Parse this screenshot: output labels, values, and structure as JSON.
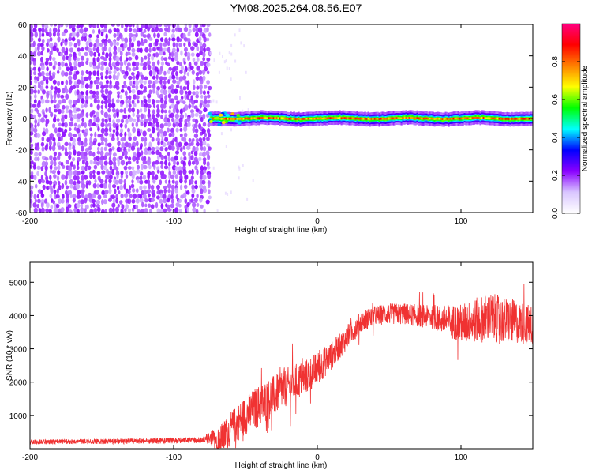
{
  "title": "YM08.2025.264.08.56.E07",
  "chart_data": [
    {
      "type": "heatmap",
      "title": "",
      "xlabel": "Height of straight line (km)",
      "ylabel": "Frequency (Hz)",
      "xlim": [
        -200,
        150
      ],
      "ylim": [
        -60,
        60
      ],
      "xticks": [
        "-200",
        "-100",
        "0",
        "100"
      ],
      "xtick_values": [
        -200,
        -100,
        0,
        100
      ],
      "yticks": [
        "-60",
        "-40",
        "-20",
        "0",
        "20",
        "40",
        "60"
      ],
      "ytick_values": [
        -60,
        -40,
        -20,
        0,
        20,
        40,
        60
      ],
      "colorbar": {
        "label": "Normalized spectral amplitude",
        "range": [
          0,
          1
        ],
        "ticks": [
          "0.0",
          "0.2",
          "0.4",
          "0.6",
          "0.8"
        ],
        "tick_values": [
          0.0,
          0.2,
          0.4,
          0.6,
          0.8
        ],
        "colors": [
          "#ffffff",
          "#d9c6ff",
          "#8a00ff",
          "#0000ff",
          "#00ffff",
          "#00ff00",
          "#ffff00",
          "#ff8000",
          "#ff0000",
          "#ff0080"
        ]
      },
      "noise_region_x": [
        -200,
        -75
      ],
      "noise_level": 0.1,
      "signal_band": {
        "x_start": -75,
        "x_end": 150,
        "center_hz": 0,
        "core_amplitude": 0.9,
        "halo_amplitude": 0.25
      },
      "grid": false
    },
    {
      "type": "line",
      "title": "",
      "xlabel": "Height of straight line (km)",
      "ylabel": "SNR (10 * v/v)",
      "xlim": [
        -200,
        150
      ],
      "ylim": [
        0,
        5600
      ],
      "xticks": [
        "-200",
        "-100",
        "0",
        "100"
      ],
      "xtick_values": [
        -200,
        -100,
        0,
        100
      ],
      "yticks": [
        "1000",
        "2000",
        "3000",
        "4000",
        "5000"
      ],
      "ytick_values": [
        1000,
        2000,
        3000,
        4000,
        5000
      ],
      "color": "#f03232",
      "trend": {
        "x": [
          -200,
          -140,
          -80,
          -66,
          -60,
          -50,
          -40,
          -30,
          -20,
          -10,
          0,
          10,
          20,
          30,
          40,
          50,
          60,
          70,
          80,
          90,
          100,
          110,
          120,
          130,
          140,
          150
        ],
        "y": [
          200,
          220,
          260,
          300,
          600,
          1000,
          1300,
          1600,
          1900,
          2100,
          2400,
          2800,
          3300,
          3800,
          4000,
          4050,
          4050,
          4000,
          3950,
          3850,
          3750,
          3850,
          3950,
          3850,
          3800,
          3700
        ]
      },
      "noise_amplitude": {
        "x": [
          -200,
          -80,
          -66,
          -40,
          0,
          20,
          40,
          80,
          100,
          120,
          150
        ],
        "y": [
          70,
          90,
          500,
          650,
          500,
          350,
          300,
          350,
          600,
          750,
          600
        ]
      },
      "grid": false
    }
  ]
}
